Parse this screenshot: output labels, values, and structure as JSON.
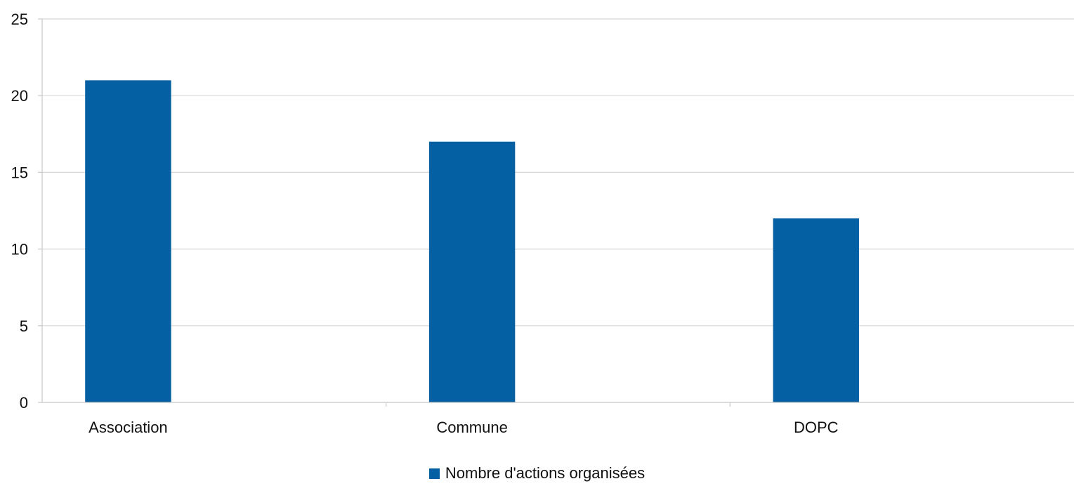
{
  "chart_data": {
    "type": "bar",
    "categories": [
      "Association",
      "Commune",
      "DOPC"
    ],
    "series": [
      {
        "name": "Nombre d'actions organisées",
        "values": [
          21,
          17,
          12
        ],
        "color": "#0460a3"
      }
    ],
    "yticks": [
      "0",
      "5",
      "10",
      "15",
      "20",
      "25"
    ],
    "ylim": [
      0,
      25
    ],
    "grid": true,
    "legend": "bottom-center",
    "title": "",
    "xlabel": "",
    "ylabel": ""
  }
}
